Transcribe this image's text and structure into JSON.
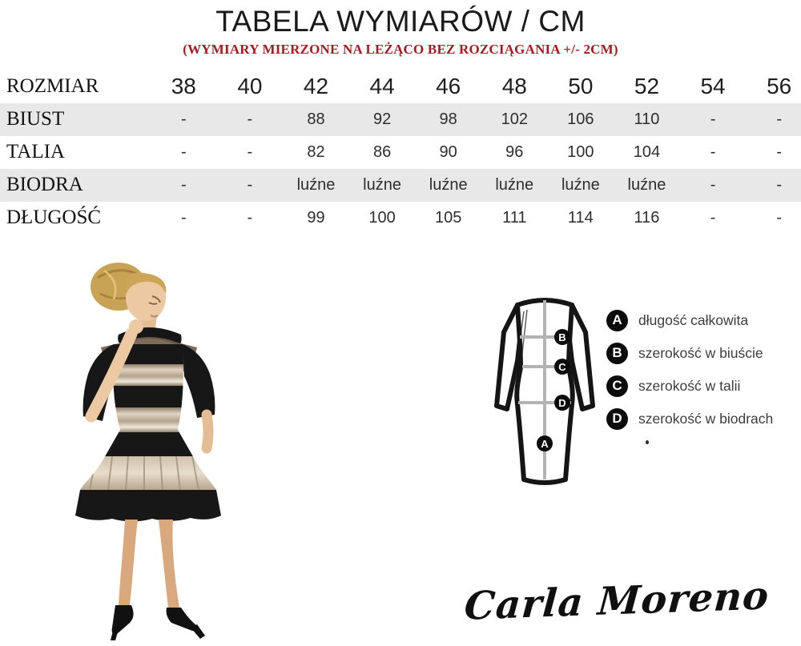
{
  "header": {
    "title": "TABELA WYMIARÓW / CM",
    "subtitle": "(WYMIARY MIERZONE NA LEŻĄCO BEZ ROZCIĄGANIA +/- 2CM)"
  },
  "table": {
    "size_label": "ROZMIAR",
    "sizes": [
      "38",
      "40",
      "42",
      "44",
      "46",
      "48",
      "50",
      "52",
      "54",
      "56"
    ],
    "rows": [
      {
        "label": "BIUST",
        "shaded": true,
        "values": [
          "-",
          "-",
          "88",
          "92",
          "98",
          "102",
          "106",
          "110",
          "-",
          "-"
        ]
      },
      {
        "label": "TALIA",
        "shaded": false,
        "values": [
          "-",
          "-",
          "82",
          "86",
          "90",
          "96",
          "100",
          "104",
          "-",
          "-"
        ]
      },
      {
        "label": "BIODRA",
        "shaded": true,
        "values": [
          "-",
          "-",
          "luźne",
          "luźne",
          "luźne",
          "luźne",
          "luźne",
          "luźne",
          "-",
          "-"
        ]
      },
      {
        "label": "DŁUGOŚĆ",
        "shaded": false,
        "values": [
          "-",
          "-",
          "99",
          "100",
          "105",
          "111",
          "114",
          "116",
          "-",
          "-"
        ]
      }
    ]
  },
  "diagram": {
    "markers": {
      "a": "A",
      "b": "B",
      "c": "C",
      "d": "D"
    }
  },
  "legend": {
    "items": [
      {
        "letter": "A",
        "text": "długość całkowita"
      },
      {
        "letter": "B",
        "text": "szerokość w biuście"
      },
      {
        "letter": "C",
        "text": "szerokość w talii"
      },
      {
        "letter": "D",
        "text": "szerokość w biodrach"
      }
    ]
  },
  "brand": {
    "signature": "Carla Moreno"
  },
  "colors": {
    "accent_red": "#a81a1f",
    "row_shade": "#e8e8e8",
    "diagram_line_gray": "#b3b3b3",
    "fabric_black": "#171717",
    "metallic": "#c3b09a"
  }
}
